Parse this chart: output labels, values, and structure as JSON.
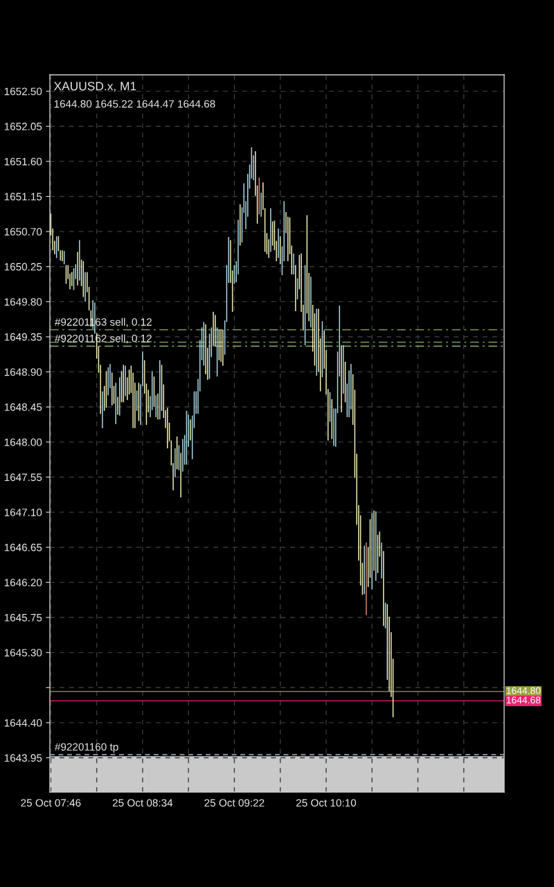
{
  "chart_data": {
    "type": "bar",
    "title": "XAUUSD.x, M1",
    "subtitle": "1644.80 1645.22 1644.47 1644.68",
    "categories": [
      "25 Oct 07:46",
      null,
      null,
      null,
      null,
      null,
      null,
      null,
      null,
      null,
      null,
      null,
      null,
      null,
      null,
      null,
      null,
      null,
      null,
      null,
      null,
      null,
      null,
      null,
      null,
      null,
      null,
      null,
      null,
      null,
      null,
      null,
      null,
      null,
      null,
      null,
      null,
      null,
      null,
      null,
      null,
      null,
      null,
      null,
      null,
      null,
      null,
      null,
      "25 Oct 08:34",
      null,
      null,
      null,
      null,
      null,
      null,
      null,
      null,
      null,
      null,
      null,
      null,
      null,
      null,
      null,
      null,
      null,
      null,
      null,
      null,
      null,
      null,
      null,
      null,
      null,
      null,
      null,
      null,
      null,
      null,
      null,
      null,
      null,
      null,
      null,
      null,
      null,
      null,
      null,
      null,
      null,
      null,
      null,
      null,
      null,
      null,
      null,
      "25 Oct 09:22",
      null,
      null,
      null,
      null,
      null,
      null,
      null,
      null,
      null,
      null,
      null,
      null,
      null,
      null,
      null,
      null,
      null,
      null,
      null,
      null,
      null,
      null,
      null,
      null,
      null,
      null,
      null,
      null,
      null,
      null,
      null,
      null,
      null,
      null,
      null,
      null,
      null,
      null,
      null,
      null,
      null,
      null,
      null,
      null,
      null,
      null,
      null,
      "25 Oct 10:10",
      null,
      null,
      null,
      null,
      null,
      null,
      null,
      null,
      null,
      null,
      null,
      null,
      null,
      null,
      null,
      null,
      null,
      null,
      null,
      null,
      null,
      null,
      null,
      null,
      null,
      null,
      null,
      null,
      null,
      null,
      null,
      null,
      null,
      null,
      null
    ],
    "base": [
      1650.65,
      1650.46,
      1650.41,
      1650.36,
      1650.45,
      1650.33,
      1650.32,
      1650.28,
      1650.03,
      1650.09,
      1649.96,
      1650.0,
      1649.95,
      1650.09,
      1650.01,
      1650.07,
      1650.0,
      1649.86,
      1649.8,
      1649.92,
      1649.69,
      1649.48,
      1649.45,
      1649.39,
      1649.07,
      1648.89,
      1648.36,
      1648.18,
      1648.4,
      1648.44,
      1648.6,
      1648.69,
      1648.47,
      1648.49,
      1648.23,
      1648.35,
      1648.34,
      1648.51,
      1648.51,
      1648.59,
      1648.54,
      1648.61,
      1648.63,
      1648.18,
      1648.18,
      1648.4,
      1648.27,
      1648.22,
      1648.72,
      1648.62,
      1648.22,
      1648.38,
      1648.32,
      1648.41,
      1648.45,
      1648.32,
      1648.29,
      1648.29,
      1648.4,
      1648.31,
      1648.18,
      1647.92,
      1648.01,
      1647.7,
      1647.38,
      1647.55,
      1647.65,
      1647.64,
      1647.29,
      1647.62,
      1647.71,
      1647.71,
      1647.94,
      1648.02,
      1647.78,
      1648.18,
      1648.36,
      1648.36,
      1648.65,
      1649.05,
      1648.98,
      1648.87,
      1648.8,
      1648.81,
      1649.09,
      1649.23,
      1649.23,
      1648.84,
      1649.05,
      1649.03,
      1648.98,
      1649.12,
      1649.54,
      1650.04,
      1650.04,
      1649.67,
      1650.03,
      1650.05,
      1650.15,
      1650.52,
      1650.56,
      1650.94,
      1650.73,
      1650.89,
      1651.25,
      1651.38,
      1651.36,
      1651.16,
      1650.8,
      1650.92,
      1650.89,
      1650.98,
      1650.44,
      1650.41,
      1650.36,
      1650.44,
      1650.52,
      1650.46,
      1650.32,
      1650.36,
      1650.28,
      1650.14,
      1650.32,
      1650.68,
      1650.32,
      1650.41,
      1650.15,
      1650.15,
      1649.68,
      1649.83,
      1649.96,
      1649.67,
      1649.43,
      1649.24,
      1649.65,
      1649.55,
      1649.47,
      1649.16,
      1648.98,
      1648.85,
      1648.9,
      1648.65,
      1648.83,
      1648.94,
      1648.61,
      1648.02,
      1648.26,
      1648.04,
      1647.95,
      1647.94,
      1648.37,
      1648.84,
      1648.38,
      1648.62,
      1648.51,
      1648.32,
      1648.32,
      1648.42,
      1648.22,
      1647.54,
      1646.94,
      1646.48,
      1646.16,
      1646.04,
      1646.05,
      1645.78,
      1646.14,
      1646.26,
      1646.11,
      1646.35,
      1646.22,
      1646.32,
      1646.53,
      1646.25,
      1645.64,
      1645.61,
      1644.95,
      1644.8,
      1644.73,
      1644.47
    ],
    "values": [
      0.28,
      0.28,
      0.17,
      0.28,
      0.19,
      0.13,
      0.14,
      0.17,
      0.24,
      0.18,
      0.2,
      0.18,
      0.28,
      0.19,
      0.43,
      0.52,
      0.34,
      0.46,
      0.38,
      0.26,
      0.3,
      0.21,
      0.37,
      0.4,
      0.33,
      0.34,
      0.63,
      0.47,
      0.32,
      0.47,
      0.36,
      0.31,
      0.42,
      0.23,
      0.53,
      0.23,
      0.49,
      0.4,
      0.48,
      0.39,
      0.29,
      0.32,
      0.35,
      0.71,
      0.58,
      0.26,
      0.49,
      0.52,
      0.44,
      0.43,
      0.53,
      0.29,
      0.27,
      0.5,
      0.39,
      0.28,
      0.33,
      0.76,
      0.59,
      0.43,
      0.23,
      0.52,
      0.24,
      0.32,
      0.35,
      0.37,
      0.42,
      0.32,
      0.57,
      0.42,
      0.38,
      0.69,
      0.41,
      0.27,
      0.56,
      0.47,
      0.29,
      0.45,
      0.66,
      0.42,
      0.56,
      0.64,
      0.41,
      0.58,
      0.38,
      0.44,
      0.4,
      0.63,
      0.39,
      0.41,
      0.46,
      0.44,
      0.73,
      0.59,
      0.55,
      0.53,
      0.24,
      0.27,
      0.7,
      0.53,
      0.45,
      0.38,
      0.36,
      0.55,
      0.31,
      0.4,
      0.32,
      0.57,
      0.49,
      0.47,
      0.31,
      0.35,
      0.56,
      0.27,
      0.24,
      0.56,
      0.31,
      0.38,
      0.26,
      0.38,
      0.36,
      0.37,
      0.77,
      0.27,
      0.57,
      0.47,
      0.37,
      0.27,
      0.59,
      0.27,
      0.44,
      0.75,
      0.33,
      1.03,
      1.26,
      0.62,
      0.65,
      0.6,
      0.67,
      0.86,
      0.81,
      0.68,
      0.72,
      0.49,
      0.57,
      0.66,
      0.38,
      0.51,
      0.48,
      0.49,
      0.79,
      0.91,
      0.86,
      0.62,
      0.52,
      0.43,
      0.6,
      0.58,
      0.65,
      1.13,
      0.91,
      0.71,
      0.9,
      0.41,
      0.62,
      0.93,
      0.51,
      0.75,
      0.98,
      0.77,
      0.89,
      0.49,
      0.32,
      0.46,
      0.96,
      0.33,
      0.97,
      0.96,
      0.83,
      0.75
    ],
    "colors": [
      "#eeeeb0",
      "#eeeeb0",
      "#eeeeb0",
      "#a6d6e4",
      "#eeeeb0",
      "#eeeeb0",
      "#eeeeb0",
      "#a6d6e4",
      "#eeeeb0",
      "#eeeeb0",
      "#eeeeb0",
      "#eeeeb0",
      "#a6d6e4",
      "#a6d6e4",
      "#eeeeb0",
      "#a6d6e4",
      "#eeeeb0",
      "#eeeeb0",
      "#a6d6e4",
      "#eeeeb0",
      "#eeeeb0",
      "#eeeeb0",
      "#a6d6e4",
      "#a6d6e4",
      "#eeeeb0",
      "#eeeeb0",
      "#eeeeb0",
      "#a6d6e4",
      "#eeeeb0",
      "#eeeeb0",
      "#a6d6e4",
      "#a6d6e4",
      "#eeeeb0",
      "#eeeeb0",
      "#a6d6e4",
      "#eeeeb0",
      "#a6d6e4",
      "#eeeeb0",
      "#eeeeb0",
      "#a6d6e4",
      "#eeeeb0",
      "#eeeeb0",
      "#eeeeb0",
      "#eeeeb0",
      "#eeeeb0",
      "#a6d6e4",
      "#eeeeb0",
      "#a6d6e4",
      "#a6d6e4",
      "#eeeeb0",
      "#eeeeb0",
      "#eeeeb0",
      "#a6d6e4",
      "#a6d6e4",
      "#eeeeb0",
      "#a6d6e4",
      "#eeeeb0",
      "#a6d6e4",
      "#eeeeb0",
      "#eeeeb0",
      "#eeeeb0",
      "#eeeeb0",
      "#eeeeb0",
      "#eeeeb0",
      "#eeeeb0",
      "#a6d6e4",
      "#eeeeb0",
      "#a6d6e4",
      "#eeeeb0",
      "#a6d6e4",
      "#a6d6e4",
      "#a6d6e4",
      "#a6d6e4",
      "#eeeeb0",
      "#a6d6e4",
      "#a6d6e4",
      "#a6d6e4",
      "#a6d6e4",
      "#a6d6e4",
      "#a6d6e4",
      "#a6d6e4",
      "#eeeeb0",
      "#eeeeb0",
      "#a6d6e4",
      "#a6d6e4",
      "#eeeeb0",
      "#eeeeb0",
      "#a6d6e4",
      "#eeeeb0",
      "#eeeeb0",
      "#eeeeb0",
      "#a6d6e4",
      "#a6d6e4",
      "#a6d6e4",
      "#eeeeb0",
      "#eeeeb0",
      "#a6d6e4",
      "#a6d6e4",
      "#a6d6e4",
      "#eeeeb0",
      "#a6d6e4",
      "#a6d6e4",
      "#a6d6e4",
      "#a6d6e4",
      "#a6d6e4",
      "#a6d6e4",
      "#a6d6e4",
      "#eeeeb0",
      "#eeeeb0",
      "#d4876c",
      "#a6d6e4",
      "#eeeeb0",
      "#eeeeb0",
      "#eeeeb0",
      "#eeeeb0",
      "#a6d6e4",
      "#eeeeb0",
      "#eeeeb0",
      "#eeeeb0",
      "#a6d6e4",
      "#eeeeb0",
      "#a6d6e4",
      "#a6d6e4",
      "#eeeeb0",
      "#eeeeb0",
      "#eeeeb0",
      "#eeeeb0",
      "#a6d6e4",
      "#eeeeb0",
      "#a6d6e4",
      "#eeeeb0",
      "#eeeeb0",
      "#eeeeb0",
      "#a6d6e4",
      "#eeeeb0",
      "#eeeeb0",
      "#a6d6e4",
      "#eeeeb0",
      "#eeeeb0",
      "#a6d6e4",
      "#eeeeb0",
      "#eeeeb0",
      "#a6d6e4",
      "#eeeeb0",
      "#eeeeb0",
      "#eeeeb0",
      "#a6d6e4",
      "#eeeeb0",
      "#a6d6e4",
      "#a6d6e4",
      "#a6d6e4",
      "#a6d6e4",
      "#eeeeb0",
      "#a6d6e4",
      "#eeeeb0",
      "#a6d6e4",
      "#a6d6e4",
      "#a6d6e4",
      "#eeeeb0",
      "#eeeeb0",
      "#eeeeb0",
      "#eeeeb0",
      "#eeeeb0",
      "#eeeeb0",
      "#a6d6e4",
      "#d4876c",
      "#eeeeb0",
      "#eeeeb0",
      "#a6d6e4",
      "#eeeeb0",
      "#a6d6e4",
      "#eeeeb0",
      "#eeeeb0",
      "#a6d6e4",
      "#eeeeb0",
      "#a6d6e4",
      "#eeeeb0",
      "#eeeeb0",
      "#eeeeb0",
      "#eeeeb0"
    ],
    "ylim": [
      1643.51,
      1652.71
    ],
    "yticks": [
      {
        "value": 1643.95,
        "label": "1643.95"
      },
      {
        "value": 1644.4,
        "label": "1644.40"
      },
      {
        "value": 1644.85,
        "label": null
      },
      {
        "value": 1645.3,
        "label": "1645.30"
      },
      {
        "value": 1645.75,
        "label": "1645.75"
      },
      {
        "value": 1646.2,
        "label": "1646.20"
      },
      {
        "value": 1646.65,
        "label": "1646.65"
      },
      {
        "value": 1647.1,
        "label": "1647.10"
      },
      {
        "value": 1647.55,
        "label": "1647.55"
      },
      {
        "value": 1648.0,
        "label": "1648.00"
      },
      {
        "value": 1648.45,
        "label": "1648.45"
      },
      {
        "value": 1648.9,
        "label": "1648.90"
      },
      {
        "value": 1649.35,
        "label": "1649.35"
      },
      {
        "value": 1649.8,
        "label": "1649.80"
      },
      {
        "value": 1650.25,
        "label": "1650.25"
      },
      {
        "value": 1650.7,
        "label": "1650.70"
      },
      {
        "value": 1651.15,
        "label": "1651.15"
      },
      {
        "value": 1651.6,
        "label": "1651.60"
      },
      {
        "value": 1652.05,
        "label": "1652.05"
      },
      {
        "value": 1652.5,
        "label": "1652.50"
      }
    ],
    "grid": true,
    "ref_lines": [
      {
        "axis": "y",
        "value": 1649.44,
        "label": "#92201163 sell, 0.12",
        "color": "#8db46b",
        "line_style": "dashdot"
      },
      {
        "axis": "y",
        "value": 1649.28,
        "color": "#8db46b",
        "line_style": "dashdot"
      },
      {
        "axis": "y",
        "value": 1649.23,
        "label": "#92201162 sell, 0.12",
        "color": "#8db46b",
        "line_style": "dashdot"
      },
      {
        "axis": "y",
        "value": 1644.8,
        "label": "1644.80",
        "color": "#9aa235",
        "line_style": "solid"
      },
      {
        "axis": "y",
        "value": 1644.68,
        "label": "1644.68",
        "color": "#e8236f",
        "line_style": "solid"
      },
      {
        "axis": "y",
        "value": 1643.99,
        "label": "#92201160 tp",
        "color": "#a8b8c8",
        "line_style": "dashed"
      }
    ],
    "bands": [
      {
        "axis": "y",
        "from": 1643.97,
        "to": 1643.51,
        "color": "#c9c9c9"
      }
    ]
  }
}
